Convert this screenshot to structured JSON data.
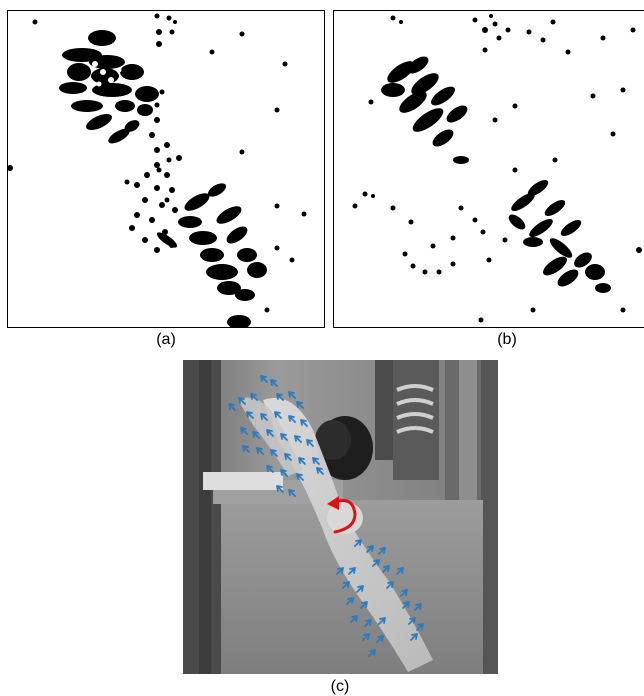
{
  "figure": {
    "panels": [
      {
        "id": "a",
        "label": "(a)",
        "kind": "binary-activation-map"
      },
      {
        "id": "b",
        "label": "(b)",
        "kind": "binary-activation-map"
      },
      {
        "id": "c",
        "label": "(c)",
        "kind": "grayscale-frame-with-motion-arrows"
      }
    ]
  },
  "colors": {
    "ink": "#000000",
    "paper": "#ffffff",
    "arrow_blue": "#2a7bbf",
    "rotation_red": "#e01010"
  },
  "icons": {
    "motion_arrow": "arrow-icon",
    "rotation_arrow": "curved-arrow-icon"
  }
}
